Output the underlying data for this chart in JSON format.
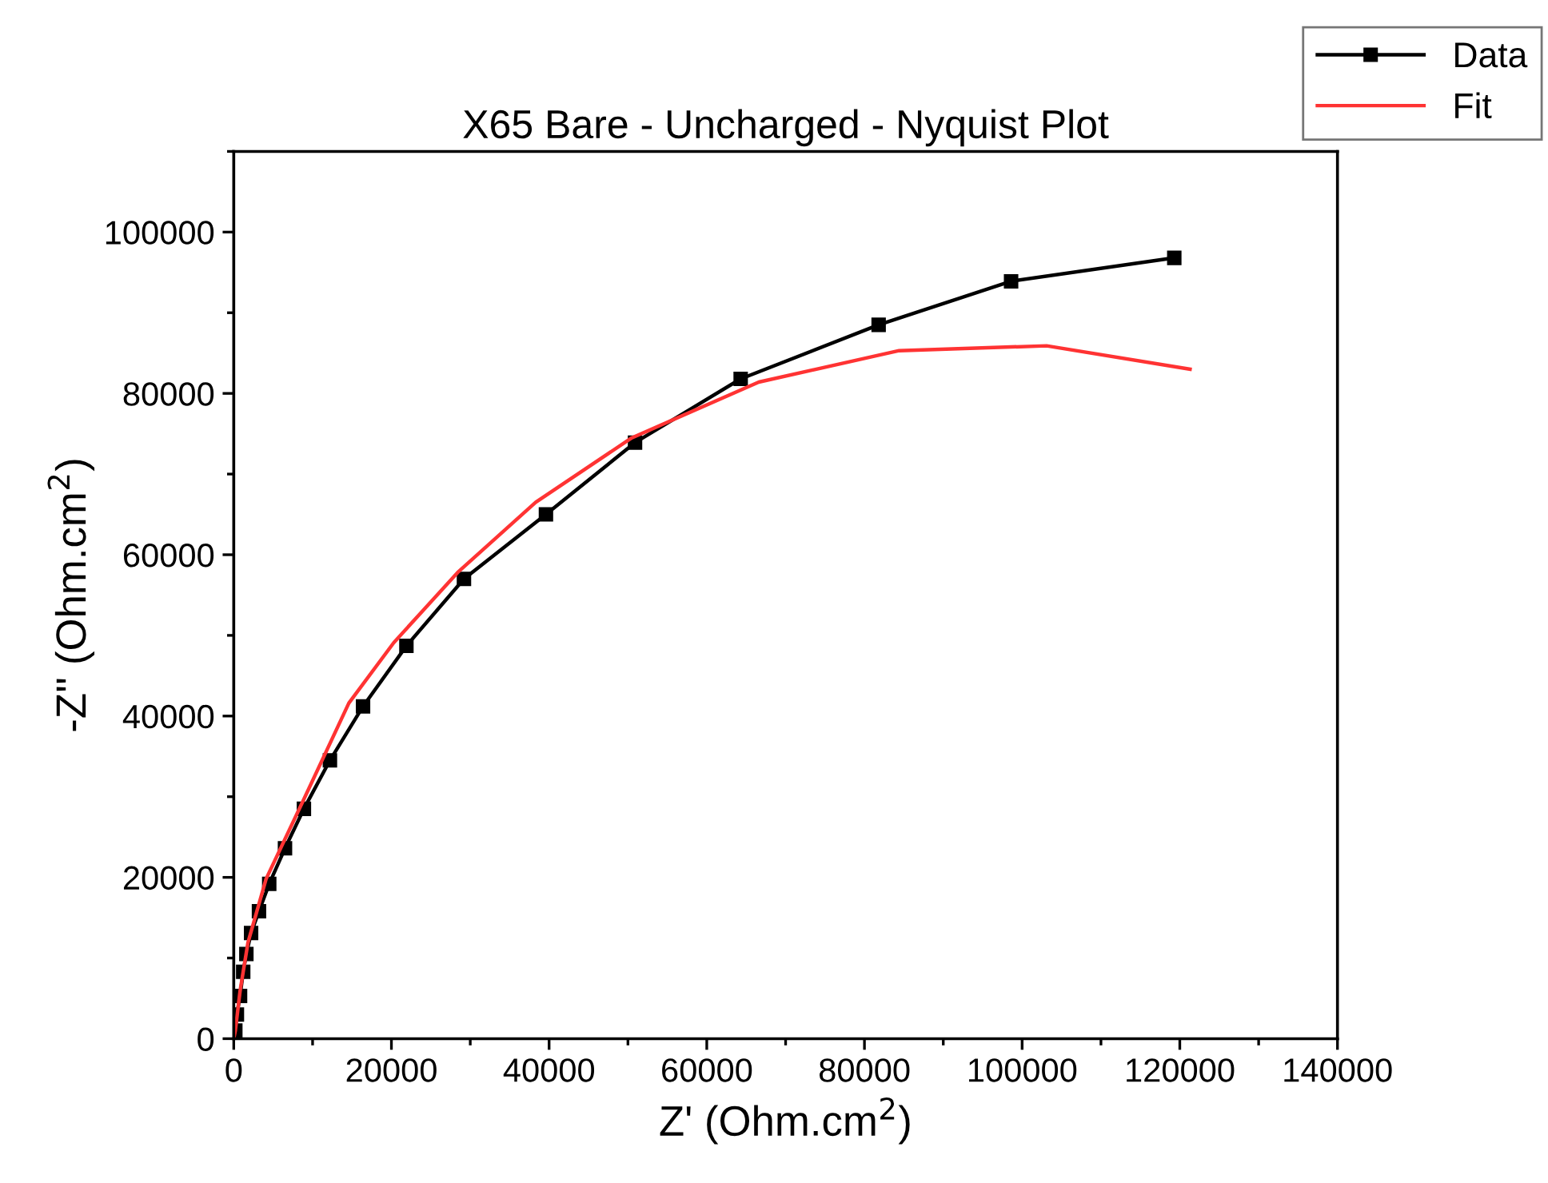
{
  "chart_data": {
    "type": "line",
    "title": "X65 Bare - Uncharged - Nyquist Plot",
    "xlabel": "Z' (Ohm.cm$^{2}$)",
    "ylabel": "-Z'' (Ohm.cm$^{2}$)",
    "xlim": [
      0,
      140000
    ],
    "ylim": [
      0,
      110000
    ],
    "xticks": [
      0,
      20000,
      40000,
      60000,
      80000,
      100000,
      120000,
      140000
    ],
    "yticks": [
      0,
      20000,
      40000,
      60000,
      80000,
      100000
    ],
    "grid": false,
    "legend": "top right",
    "series": [
      {
        "name": "Data",
        "color": "#000000",
        "marker": "square",
        "x": [
          200,
          400,
          800,
          1200,
          1600,
          2200,
          3200,
          4500,
          6500,
          8900,
          12200,
          16400,
          21900,
          29200,
          39600,
          50900,
          64300,
          81800,
          98600,
          119300
        ],
        "values": [
          1000,
          3000,
          5300,
          8300,
          10500,
          13100,
          15800,
          19200,
          23600,
          28500,
          34500,
          41200,
          48700,
          57000,
          65000,
          73900,
          81800,
          88500,
          93900,
          96800
        ]
      },
      {
        "name": "Fit",
        "color": "#ff3333",
        "marker": "none",
        "x": [
          0,
          200,
          800,
          1800,
          4100,
          8900,
          14600,
          20300,
          28400,
          38300,
          50500,
          66600,
          84400,
          103100,
          121300
        ],
        "values": [
          0,
          1000,
          5900,
          11900,
          19800,
          29700,
          41600,
          49100,
          57800,
          66500,
          74500,
          81400,
          85300,
          85900,
          83000
        ]
      }
    ]
  }
}
